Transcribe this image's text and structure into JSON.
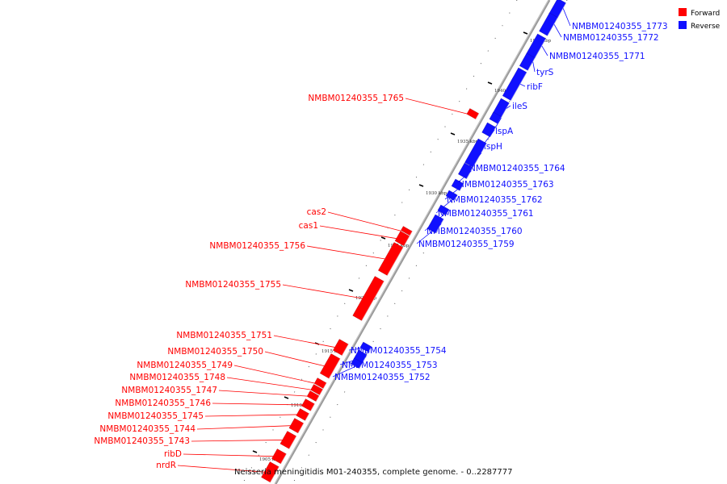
{
  "colors": {
    "forward": "#ff0000",
    "reverse": "#1010ff",
    "backbone": "#888888"
  },
  "legend": {
    "forward": "Forward",
    "reverse": "Reverse"
  },
  "caption": "Neisseria meningitidis M01-240355, complete genome. - 0..2287777",
  "ticks": [
    "1945 kbp",
    "1940 kbp",
    "1935 kbp",
    "1930 kbp",
    "1925 kbp",
    "1920 kbp",
    "1915 kbp",
    "1910 kbp",
    "1905 kbp"
  ],
  "reverse_genes": [
    "NMBM01240355_1773",
    "NMBM01240355_1772",
    "NMBM01240355_1771",
    "tyrS",
    "ribF",
    "ileS",
    "lspA",
    "ispH",
    "NMBM01240355_1764",
    "NMBM01240355_1763",
    "NMBM01240355_1762",
    "NMBM01240355_1761",
    "NMBM01240355_1760",
    "NMBM01240355_1759",
    "NMBM01240355_1754",
    "NMBM01240355_1753",
    "NMBM01240355_1752"
  ],
  "forward_genes": [
    "NMBM01240355_1765",
    "cas2",
    "cas1",
    "NMBM01240355_1756",
    "NMBM01240355_1755",
    "NMBM01240355_1751",
    "NMBM01240355_1750",
    "NMBM01240355_1749",
    "NMBM01240355_1748",
    "NMBM01240355_1747",
    "NMBM01240355_1746",
    "NMBM01240355_1745",
    "NMBM01240355_1744",
    "NMBM01240355_1743",
    "ribD",
    "nrdR"
  ]
}
